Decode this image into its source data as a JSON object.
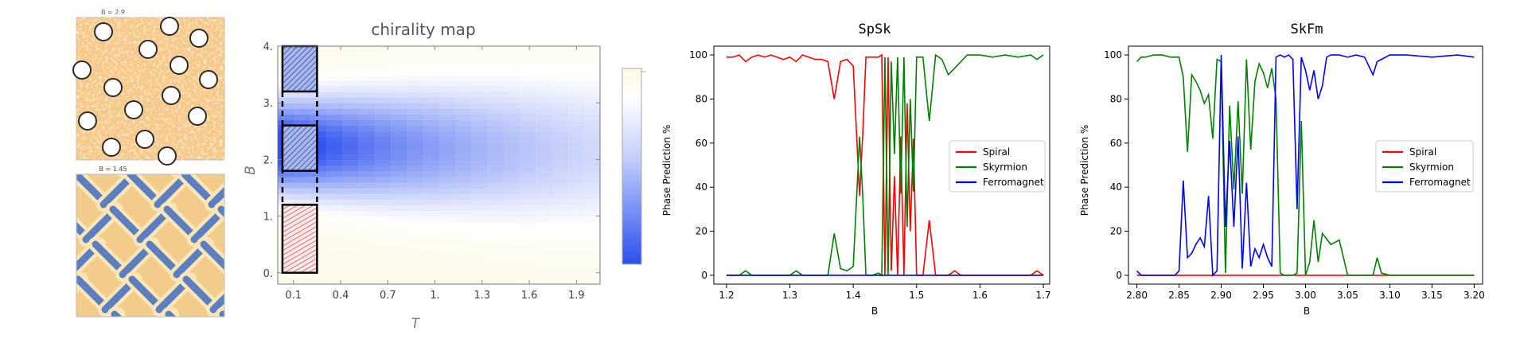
{
  "chart_data": [
    {
      "type": "image",
      "title": "B = 2.9",
      "description_colors": {
        "background": "#f6c98a",
        "spots": "#ffffff"
      }
    },
    {
      "type": "image",
      "title": "B = 1.45",
      "description_colors": {
        "background": "#f3cc8c",
        "stripes": "#5b7fc0"
      }
    },
    {
      "type": "heatmap",
      "title": "chirality map",
      "xlabel": "T",
      "ylabel": "B",
      "xticks": [
        "0.1",
        "0.4",
        "0.7",
        "1.",
        "1.3",
        "1.6",
        "1.9"
      ],
      "xtick_values": [
        0.1,
        0.4,
        0.7,
        1.0,
        1.3,
        1.6,
        1.9
      ],
      "yticks": [
        "0.",
        "1.",
        "2.",
        "3.",
        "4."
      ],
      "ytick_values": [
        0,
        1,
        2,
        3,
        4
      ],
      "xlim": [
        0.0,
        2.05
      ],
      "ylim": [
        -0.2,
        4.0
      ],
      "colormap": [
        "#2b4ff0",
        "#ffffff",
        "#fcfbe6"
      ],
      "boxes": [
        {
          "pattern": "blue-hatch",
          "b_range": [
            3.2,
            4.0
          ]
        },
        {
          "pattern": "blue-hatch",
          "b_range": [
            1.8,
            2.6
          ]
        },
        {
          "pattern": "red-hatch",
          "b_range": [
            0.0,
            1.2
          ]
        }
      ],
      "dashed_segment": {
        "t": 0.25,
        "b_range": [
          1.2,
          3.2
        ]
      }
    },
    {
      "type": "line",
      "title": "SpSk",
      "xlabel": "B",
      "ylabel": "Phase Prediction %",
      "xlim": [
        1.18,
        1.71
      ],
      "ylim": [
        -4,
        104
      ],
      "xticks": [
        "1.2",
        "1.3",
        "1.4",
        "1.5",
        "1.6",
        "1.7"
      ],
      "xtick_values": [
        1.2,
        1.3,
        1.4,
        1.5,
        1.6,
        1.7
      ],
      "yticks": [
        "0",
        "20",
        "40",
        "60",
        "80",
        "100"
      ],
      "ytick_values": [
        0,
        20,
        40,
        60,
        80,
        100
      ],
      "legend_position": "center-right",
      "series": [
        {
          "name": "Spiral",
          "color": "#ff0000",
          "x": [
            1.2,
            1.21,
            1.22,
            1.23,
            1.24,
            1.25,
            1.26,
            1.27,
            1.28,
            1.29,
            1.3,
            1.31,
            1.32,
            1.33,
            1.34,
            1.35,
            1.36,
            1.37,
            1.38,
            1.39,
            1.4,
            1.41,
            1.415,
            1.42,
            1.43,
            1.44,
            1.445,
            1.45,
            1.455,
            1.46,
            1.465,
            1.47,
            1.475,
            1.48,
            1.485,
            1.49,
            1.495,
            1.5,
            1.51,
            1.52,
            1.53,
            1.54,
            1.55,
            1.56,
            1.57,
            1.58,
            1.6,
            1.62,
            1.64,
            1.66,
            1.68,
            1.69,
            1.7
          ],
          "y": [
            99,
            99,
            100,
            97,
            99,
            100,
            99,
            100,
            99,
            98,
            99,
            97,
            100,
            99,
            98,
            98,
            97,
            80,
            97,
            98,
            95,
            36,
            64,
            99,
            99,
            99,
            100,
            0,
            99,
            2,
            45,
            0,
            63,
            0,
            78,
            20,
            62,
            0,
            0,
            25,
            0,
            0,
            0,
            2,
            0,
            0,
            0,
            0,
            0,
            0,
            0,
            2,
            0
          ]
        },
        {
          "name": "Skyrmion",
          "color": "#008000",
          "x": [
            1.2,
            1.22,
            1.23,
            1.24,
            1.25,
            1.28,
            1.3,
            1.31,
            1.32,
            1.33,
            1.34,
            1.36,
            1.37,
            1.38,
            1.39,
            1.4,
            1.41,
            1.415,
            1.42,
            1.43,
            1.44,
            1.445,
            1.45,
            1.455,
            1.46,
            1.465,
            1.47,
            1.475,
            1.48,
            1.485,
            1.49,
            1.495,
            1.5,
            1.51,
            1.52,
            1.53,
            1.54,
            1.55,
            1.56,
            1.57,
            1.58,
            1.6,
            1.62,
            1.64,
            1.66,
            1.68,
            1.69,
            1.7
          ],
          "y": [
            0,
            0,
            2,
            0,
            0,
            0,
            0,
            2,
            0,
            0,
            0,
            0,
            19,
            3,
            2,
            4,
            63,
            36,
            0,
            0,
            1,
            0,
            99,
            0,
            97,
            55,
            99,
            37,
            99,
            22,
            80,
            38,
            99,
            99,
            70,
            100,
            98,
            91,
            94,
            97,
            100,
            100,
            99,
            100,
            99,
            100,
            98,
            100
          ]
        },
        {
          "name": "Ferromagnet",
          "color": "#0000ff",
          "x": [
            1.2,
            1.7
          ],
          "y": [
            0,
            0
          ]
        }
      ]
    },
    {
      "type": "line",
      "title": "SkFm",
      "xlabel": "B",
      "ylabel": "Phase Prediction %",
      "xlim": [
        2.79,
        3.21
      ],
      "ylim": [
        -4,
        104
      ],
      "xticks": [
        "2.80",
        "2.85",
        "2.90",
        "2.95",
        "3.00",
        "3.05",
        "3.10",
        "3.15",
        "3.20"
      ],
      "xtick_values": [
        2.8,
        2.85,
        2.9,
        2.95,
        3.0,
        3.05,
        3.1,
        3.15,
        3.2
      ],
      "yticks": [
        "0",
        "20",
        "40",
        "60",
        "80",
        "100"
      ],
      "ytick_values": [
        0,
        20,
        40,
        60,
        80,
        100
      ],
      "legend_position": "center-right",
      "series": [
        {
          "name": "Spiral",
          "color": "#ff0000",
          "x": [
            2.8,
            3.2
          ],
          "y": [
            0,
            0
          ]
        },
        {
          "name": "Skyrmion",
          "color": "#008000",
          "x": [
            2.8,
            2.805,
            2.81,
            2.82,
            2.83,
            2.84,
            2.85,
            2.855,
            2.86,
            2.865,
            2.87,
            2.875,
            2.88,
            2.885,
            2.89,
            2.895,
            2.9,
            2.905,
            2.91,
            2.915,
            2.92,
            2.925,
            2.93,
            2.935,
            2.94,
            2.945,
            2.95,
            2.955,
            2.96,
            2.965,
            2.97,
            2.975,
            2.98,
            2.985,
            2.99,
            2.995,
            3.0,
            3.005,
            3.01,
            3.015,
            3.02,
            3.03,
            3.04,
            3.05,
            3.06,
            3.07,
            3.08,
            3.085,
            3.09,
            3.1,
            3.12,
            3.15,
            3.2
          ],
          "y": [
            97,
            99,
            99,
            100,
            100,
            99,
            99,
            90,
            56,
            91,
            88,
            84,
            78,
            82,
            62,
            98,
            97,
            1,
            77,
            39,
            79,
            37,
            98,
            57,
            88,
            96,
            92,
            85,
            94,
            80,
            1,
            0,
            0,
            0,
            1,
            70,
            0,
            6,
            25,
            6,
            19,
            14,
            16,
            0,
            0,
            0,
            0,
            8,
            1,
            0,
            0,
            0,
            0
          ]
        },
        {
          "name": "Ferromagnet",
          "color": "#0000ff",
          "x": [
            2.8,
            2.805,
            2.81,
            2.82,
            2.83,
            2.84,
            2.845,
            2.85,
            2.855,
            2.86,
            2.865,
            2.87,
            2.875,
            2.88,
            2.885,
            2.89,
            2.895,
            2.9,
            2.905,
            2.91,
            2.915,
            2.92,
            2.925,
            2.93,
            2.935,
            2.94,
            2.945,
            2.95,
            2.955,
            2.96,
            2.965,
            2.97,
            2.975,
            2.98,
            2.985,
            2.99,
            2.995,
            3.0,
            3.005,
            3.01,
            3.015,
            3.02,
            3.025,
            3.03,
            3.04,
            3.05,
            3.06,
            3.07,
            3.08,
            3.085,
            3.09,
            3.1,
            3.12,
            3.15,
            3.18,
            3.2
          ],
          "y": [
            2,
            0,
            0,
            0,
            0,
            0,
            0,
            2,
            43,
            8,
            10,
            14,
            17,
            13,
            36,
            0,
            2,
            100,
            22,
            61,
            22,
            63,
            3,
            42,
            4,
            12,
            8,
            14,
            8,
            4,
            99,
            100,
            99,
            100,
            98,
            30,
            99,
            93,
            84,
            93,
            80,
            86,
            99,
            100,
            100,
            99,
            100,
            99,
            91,
            97,
            98,
            100,
            100,
            99,
            100,
            99
          ]
        }
      ]
    }
  ]
}
